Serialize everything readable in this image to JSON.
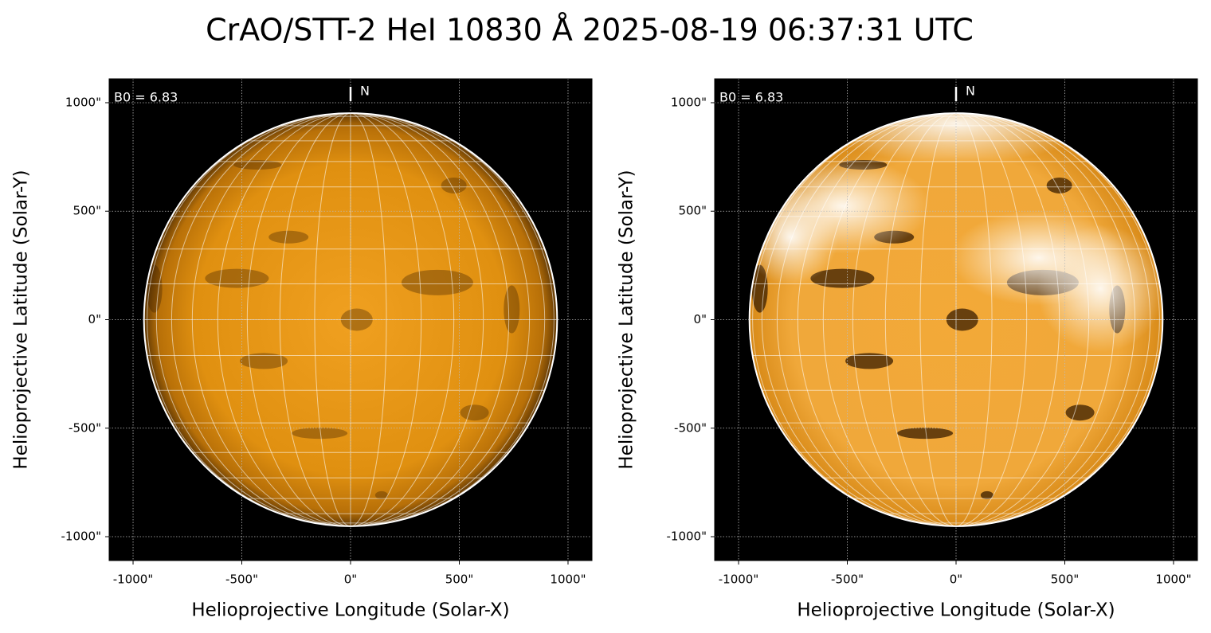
{
  "title": "CrAO/STT-2 HeI 10830 Å 2025-08-19 06:37:31 UTC",
  "chart_data": [
    {
      "type": "image",
      "xlabel": "Helioprojective Longitude (Solar-X)",
      "ylabel": "Helioprojective Latitude (Solar-Y)",
      "annotation": "B0 = 6.83",
      "north_label": "N",
      "xlim": [
        -1110,
        1110
      ],
      "ylim": [
        -1110,
        1110
      ],
      "xticks": [
        {
          "value": -1000,
          "label": "-1000\""
        },
        {
          "value": -500,
          "label": "-500\""
        },
        {
          "value": 0,
          "label": "0\""
        },
        {
          "value": 500,
          "label": "500\""
        },
        {
          "value": 1000,
          "label": "1000\""
        }
      ],
      "yticks": [
        {
          "value": -1000,
          "label": "-1000\""
        },
        {
          "value": -500,
          "label": "-500\""
        },
        {
          "value": 0,
          "label": "0\""
        },
        {
          "value": 500,
          "label": "500\""
        },
        {
          "value": 1000,
          "label": "1000\""
        }
      ],
      "grid": true
    },
    {
      "type": "image",
      "xlabel": "Helioprojective Longitude (Solar-X)",
      "ylabel": "Helioprojective Latitude (Solar-Y)",
      "annotation": "B0 = 6.83",
      "north_label": "N",
      "xlim": [
        -1110,
        1110
      ],
      "ylim": [
        -1110,
        1110
      ],
      "xticks": [
        {
          "value": -1000,
          "label": "-1000\""
        },
        {
          "value": -500,
          "label": "-500\""
        },
        {
          "value": 0,
          "label": "0\""
        },
        {
          "value": 500,
          "label": "500\""
        },
        {
          "value": 1000,
          "label": "1000\""
        }
      ],
      "yticks": [
        {
          "value": -1000,
          "label": "-1000\""
        },
        {
          "value": -500,
          "label": "-500\""
        },
        {
          "value": 0,
          "label": "0\""
        },
        {
          "value": 500,
          "label": "500\""
        },
        {
          "value": 1000,
          "label": "1000\""
        }
      ],
      "grid": true
    }
  ]
}
